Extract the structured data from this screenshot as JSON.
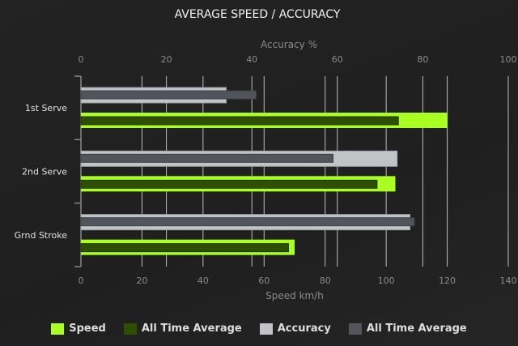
{
  "chart_data": {
    "type": "bar",
    "orientation": "horizontal",
    "title": "AVERAGE SPEED / ACCURACY",
    "categories": [
      "1st Serve",
      "2nd Serve",
      "Grnd Stroke"
    ],
    "speed_axis": {
      "label": "Speed km/h",
      "range": [
        0,
        140
      ],
      "ticks": [
        0,
        20,
        40,
        60,
        80,
        100,
        120,
        140
      ],
      "position": "bottom"
    },
    "accuracy_axis": {
      "label": "Accuracy %",
      "range": [
        0,
        100
      ],
      "ticks": [
        0,
        20,
        40,
        60,
        80,
        100
      ],
      "position": "top"
    },
    "grid": true,
    "legend_position": "bottom",
    "series": [
      {
        "name": "Speed",
        "axis": "speed",
        "color": "#aaff22",
        "values": [
          120,
          103,
          70
        ]
      },
      {
        "name": "All Time Average",
        "axis": "speed",
        "color": "#2f4f00",
        "values": [
          104,
          97,
          68
        ]
      },
      {
        "name": "Accuracy",
        "axis": "accuracy",
        "color": "#c0c4c6",
        "values": [
          34,
          74,
          77
        ]
      },
      {
        "name": "All Time Average",
        "axis": "accuracy",
        "color": "#52565c",
        "values": [
          41,
          59,
          78
        ]
      }
    ]
  }
}
